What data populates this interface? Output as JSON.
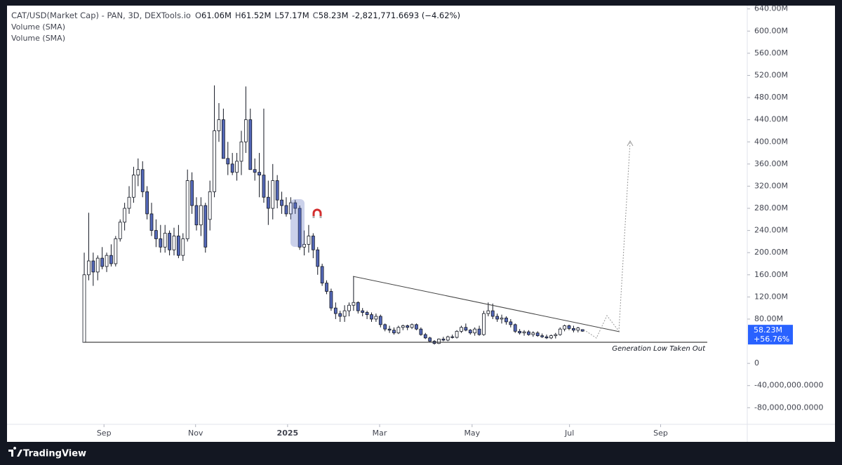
{
  "chart_data": {
    "type": "candlestick",
    "header": {
      "symbol": "CAT/USD(Market Cap)",
      "source": " - PAN, 3D, DEXTools.io",
      "o_label": "O",
      "o": "61.06M",
      "h_label": "H",
      "h": "61.52M",
      "l_label": "L",
      "l": "57.17M",
      "c_label": "C",
      "c": "58.23M",
      "change": "-2,821,771.6693 (−4.62%)"
    },
    "indicators": [
      "Volume (SMA)",
      "Volume (SMA)"
    ],
    "annotation": "Generation Low Taken Out",
    "last_price_label": "58.23M",
    "last_change_label": "+56.76%",
    "up_color": "#ffffff",
    "down_color": "#5468b8",
    "price_tag_color": "#2962ff",
    "brand": "TradingView",
    "xlim": [
      -17.2,
      147.7
    ],
    "xticks": [
      {
        "value": 4.4,
        "label": "Sep"
      },
      {
        "value": 24.8,
        "label": "Nov"
      },
      {
        "value": 45.3,
        "label": "2025"
      },
      {
        "value": 65.8,
        "label": "Mar"
      },
      {
        "value": 86.4,
        "label": "May"
      },
      {
        "value": 108.1,
        "label": "Jul"
      },
      {
        "value": 128.4,
        "label": "Sep"
      }
    ],
    "ylim": [
      -110,
      646
    ],
    "yticks": [
      {
        "value": 640,
        "label": "640.00M"
      },
      {
        "value": 600,
        "label": "600.00M"
      },
      {
        "value": 560,
        "label": "560.00M"
      },
      {
        "value": 520,
        "label": "520.00M"
      },
      {
        "value": 480,
        "label": "480.00M"
      },
      {
        "value": 440,
        "label": "440.00M"
      },
      {
        "value": 400,
        "label": "400.00M"
      },
      {
        "value": 360,
        "label": "360.00M"
      },
      {
        "value": 320,
        "label": "320.00M"
      },
      {
        "value": 280,
        "label": "280.00M"
      },
      {
        "value": 240,
        "label": "240.00M"
      },
      {
        "value": 200,
        "label": "200.00M"
      },
      {
        "value": 160,
        "label": "160.00M"
      },
      {
        "value": 120,
        "label": "120.00M"
      },
      {
        "value": 80,
        "label": "80.00M"
      },
      0,
      {
        "value": -40,
        "label": "-40,000,000.0000"
      },
      {
        "value": -80,
        "label": "-80,000,000.0000"
      }
    ],
    "ohlc": [
      [
        38,
        200,
        38,
        160
      ],
      [
        160,
        272,
        150,
        185
      ],
      [
        185,
        200,
        140,
        165
      ],
      [
        165,
        195,
        150,
        190
      ],
      [
        190,
        210,
        170,
        175
      ],
      [
        175,
        200,
        165,
        195
      ],
      [
        195,
        215,
        175,
        180
      ],
      [
        180,
        230,
        175,
        225
      ],
      [
        225,
        260,
        220,
        255
      ],
      [
        255,
        290,
        240,
        280
      ],
      [
        280,
        320,
        270,
        300
      ],
      [
        300,
        355,
        290,
        340
      ],
      [
        340,
        370,
        320,
        350
      ],
      [
        350,
        365,
        300,
        310
      ],
      [
        310,
        320,
        260,
        270
      ],
      [
        270,
        290,
        230,
        240
      ],
      [
        240,
        260,
        210,
        225
      ],
      [
        225,
        250,
        200,
        210
      ],
      [
        210,
        250,
        200,
        235
      ],
      [
        235,
        240,
        195,
        205
      ],
      [
        205,
        245,
        195,
        230
      ],
      [
        230,
        250,
        190,
        195
      ],
      [
        195,
        235,
        185,
        225
      ],
      [
        225,
        350,
        220,
        330
      ],
      [
        330,
        345,
        270,
        285
      ],
      [
        285,
        300,
        240,
        250
      ],
      [
        250,
        300,
        230,
        285
      ],
      [
        285,
        290,
        200,
        210
      ],
      [
        260,
        330,
        240,
        310
      ],
      [
        310,
        502,
        300,
        420
      ],
      [
        420,
        470,
        400,
        440
      ],
      [
        440,
        460,
        370,
        370
      ],
      [
        370,
        400,
        340,
        360
      ],
      [
        360,
        380,
        340,
        345
      ],
      [
        345,
        380,
        330,
        365
      ],
      [
        365,
        420,
        340,
        400
      ],
      [
        400,
        500,
        380,
        440
      ],
      [
        440,
        460,
        350,
        350
      ],
      [
        350,
        370,
        330,
        345
      ],
      [
        345,
        380,
        300,
        340
      ],
      [
        340,
        460,
        290,
        300
      ],
      [
        300,
        330,
        250,
        280
      ],
      [
        280,
        360,
        260,
        330
      ],
      [
        330,
        340,
        280,
        295
      ],
      [
        295,
        310,
        270,
        285
      ],
      [
        285,
        300,
        265,
        270
      ],
      [
        270,
        300,
        260,
        290
      ],
      [
        290,
        295,
        270,
        280
      ],
      [
        280,
        285,
        205,
        210
      ],
      [
        210,
        240,
        195,
        215
      ],
      [
        215,
        250,
        200,
        230
      ],
      [
        230,
        235,
        190,
        205
      ],
      [
        205,
        210,
        160,
        175
      ],
      [
        175,
        180,
        140,
        145
      ],
      [
        145,
        150,
        125,
        130
      ],
      [
        130,
        135,
        95,
        100
      ],
      [
        100,
        110,
        80,
        90
      ],
      [
        90,
        95,
        75,
        85
      ],
      [
        85,
        105,
        75,
        95
      ],
      [
        95,
        110,
        85,
        105
      ],
      [
        105,
        157,
        95,
        110
      ],
      [
        110,
        112,
        90,
        95
      ],
      [
        95,
        100,
        85,
        92
      ],
      [
        92,
        95,
        80,
        88
      ],
      [
        88,
        92,
        75,
        80
      ],
      [
        80,
        90,
        75,
        85
      ],
      [
        85,
        88,
        65,
        70
      ],
      [
        70,
        72,
        58,
        62
      ],
      [
        62,
        68,
        55,
        60
      ],
      [
        60,
        65,
        52,
        55
      ],
      [
        55,
        68,
        53,
        65
      ],
      [
        65,
        70,
        60,
        68
      ],
      [
        68,
        70,
        60,
        65
      ],
      [
        65,
        72,
        62,
        70
      ],
      [
        70,
        72,
        60,
        62
      ],
      [
        62,
        65,
        50,
        52
      ],
      [
        52,
        55,
        44,
        46
      ],
      [
        46,
        48,
        38,
        40
      ],
      [
        40,
        42,
        34,
        36
      ],
      [
        36,
        45,
        35,
        44
      ],
      [
        44,
        48,
        40,
        42
      ],
      [
        42,
        50,
        40,
        48
      ],
      [
        48,
        52,
        45,
        47
      ],
      [
        47,
        60,
        45,
        58
      ],
      [
        58,
        68,
        55,
        65
      ],
      [
        65,
        72,
        58,
        60
      ],
      [
        60,
        62,
        52,
        55
      ],
      [
        55,
        65,
        50,
        62
      ],
      [
        62,
        68,
        50,
        52
      ],
      [
        52,
        95,
        50,
        90
      ],
      [
        90,
        110,
        85,
        95
      ],
      [
        95,
        108,
        80,
        85
      ],
      [
        85,
        90,
        75,
        80
      ],
      [
        80,
        88,
        72,
        82
      ],
      [
        82,
        85,
        70,
        75
      ],
      [
        75,
        80,
        65,
        70
      ],
      [
        70,
        72,
        55,
        58
      ],
      [
        58,
        62,
        52,
        55
      ],
      [
        55,
        60,
        50,
        57
      ],
      [
        57,
        60,
        50,
        52
      ],
      [
        52,
        58,
        48,
        55
      ],
      [
        55,
        58,
        48,
        50
      ],
      [
        50,
        54,
        46,
        48
      ],
      [
        48,
        52,
        44,
        46
      ],
      [
        46,
        52,
        44,
        50
      ],
      [
        50,
        55,
        45,
        52
      ],
      [
        52,
        65,
        50,
        62
      ],
      [
        62,
        70,
        58,
        68
      ],
      [
        68,
        70,
        60,
        63
      ],
      [
        63,
        68,
        56,
        60
      ],
      [
        60,
        66,
        56,
        64
      ],
      [
        61.06,
        61.52,
        57.17,
        58.23
      ]
    ]
  }
}
